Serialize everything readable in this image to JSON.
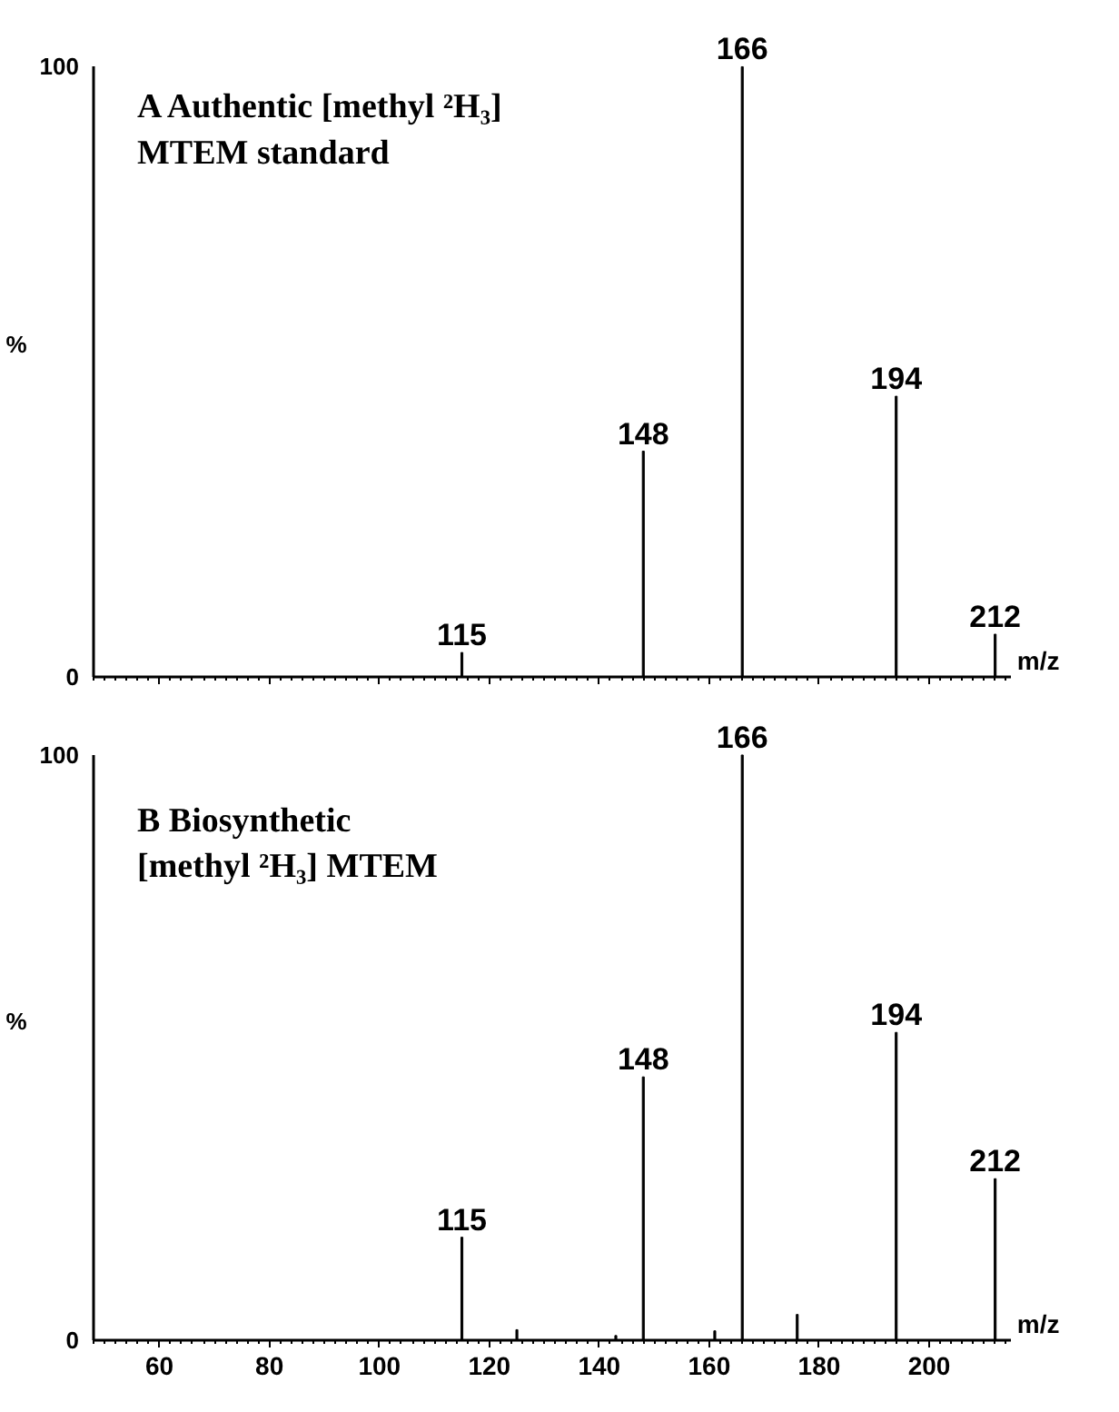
{
  "chart_data": [
    {
      "type": "bar",
      "title": "A  Authentic [methyl ²H₃]\n     MTEM standard",
      "xlabel": "m/z",
      "ylabel": "%",
      "color": "#000000",
      "x": [
        115,
        148,
        166,
        194,
        212
      ],
      "values": [
        4,
        37,
        100,
        46,
        7
      ],
      "annotations": [
        {
          "text": "115",
          "x": 115,
          "y": 4
        },
        {
          "text": "148",
          "x": 148,
          "y": 37
        },
        {
          "text": "166",
          "x": 166,
          "y": 100
        },
        {
          "text": "194",
          "x": 194,
          "y": 46
        },
        {
          "text": "212",
          "x": 212,
          "y": 7
        }
      ],
      "xlim": [
        48,
        215
      ],
      "ylim": [
        0,
        100
      ],
      "yticks": [
        0,
        100
      ],
      "xticks": [
        60,
        80,
        100,
        120,
        140,
        160,
        180,
        200
      ],
      "tick_labels": "y"
    },
    {
      "type": "bar",
      "title": "B  Biosynthetic\n[methyl ²H₃] MTEM",
      "xlabel": "m/z",
      "ylabel": "%",
      "color": "#000000",
      "x": [
        115,
        125,
        143,
        148,
        161,
        166,
        176,
        194,
        212
      ],
      "values": [
        17.6,
        1.8,
        0.8,
        45,
        1.6,
        100,
        4.4,
        52.6,
        27.6
      ],
      "annotations": [
        {
          "text": "115",
          "x": 115,
          "y": 17.6
        },
        {
          "text": "148",
          "x": 148,
          "y": 45
        },
        {
          "text": "166",
          "x": 166,
          "y": 100
        },
        {
          "text": "194",
          "x": 194,
          "y": 52.6
        },
        {
          "text": "212",
          "x": 212,
          "y": 27.6
        }
      ],
      "xlim": [
        48,
        215
      ],
      "ylim": [
        0,
        100
      ],
      "yticks": [
        0,
        100
      ],
      "xticks": [
        60,
        80,
        100,
        120,
        140,
        160,
        180,
        200
      ]
    }
  ]
}
